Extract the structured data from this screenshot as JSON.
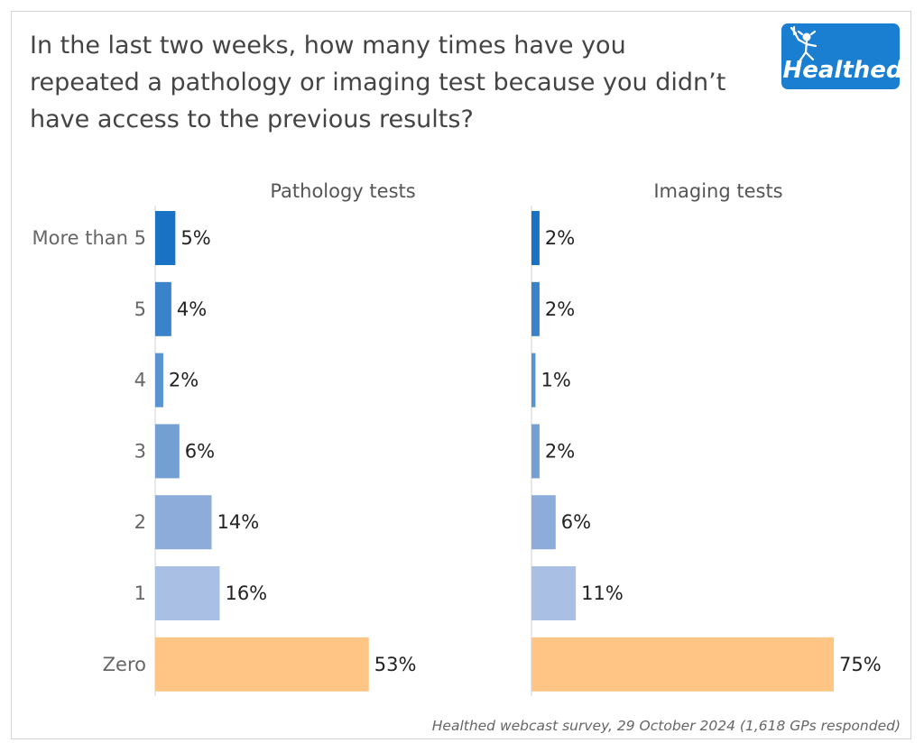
{
  "title": "In the last two weeks, how many times have you repeated a pathology or imaging test because you didn’t have access to the previous results?",
  "logo": {
    "text": "Healthed",
    "icon": "hermes-figure-icon",
    "background": "#1a7fd1"
  },
  "source": "Healthed webcast survey, 29 October 2024 (1,618 GPs responded)",
  "chart_data": {
    "type": "bar",
    "orientation": "horizontal",
    "categories": [
      "More than 5",
      "5",
      "4",
      "3",
      "2",
      "1",
      "Zero"
    ],
    "series": [
      {
        "name": "Pathology tests",
        "values": [
          5,
          4,
          2,
          6,
          14,
          16,
          53
        ],
        "labels": [
          "5%",
          "4%",
          "2%",
          "6%",
          "14%",
          "16%",
          "53%"
        ]
      },
      {
        "name": "Imaging tests",
        "values": [
          2,
          2,
          1,
          2,
          6,
          11,
          75
        ],
        "labels": [
          "2%",
          "2%",
          "1%",
          "2%",
          "6%",
          "11%",
          "75%"
        ]
      }
    ],
    "unit": "%",
    "xlim": [
      0,
      75
    ],
    "grid": false,
    "legend": "none",
    "bar_colors": [
      "#1a72c4",
      "#3a83cb",
      "#5b93d0",
      "#739fd3",
      "#8dacda",
      "#a9bfe3",
      "#fec584"
    ]
  }
}
